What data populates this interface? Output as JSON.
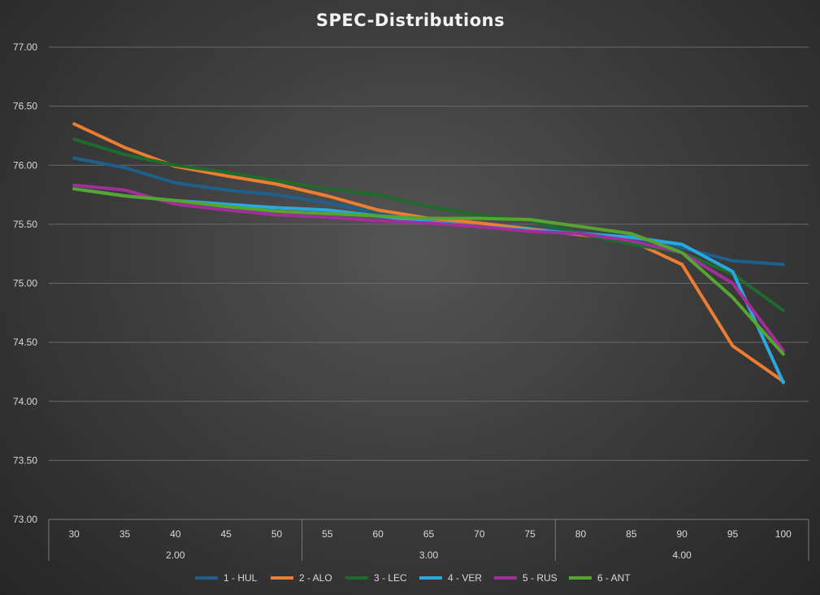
{
  "chart_data": {
    "type": "line",
    "title": "SPEC-Distributions",
    "xlabel": "",
    "ylabel": "",
    "ylim": [
      73.0,
      77.0
    ],
    "y_ticks": [
      "73.00",
      "73.50",
      "74.00",
      "74.50",
      "75.00",
      "75.50",
      "76.00",
      "76.50",
      "77.00"
    ],
    "categories": [
      "30",
      "35",
      "40",
      "45",
      "50",
      "55",
      "60",
      "65",
      "70",
      "75",
      "80",
      "85",
      "90",
      "95",
      "100"
    ],
    "groups": [
      {
        "label": "2.00",
        "count": 5
      },
      {
        "label": "3.00",
        "count": 5
      },
      {
        "label": "4.00",
        "count": 5
      }
    ],
    "grid": true,
    "legend_position": "bottom",
    "series": [
      {
        "name": "1 - HUL",
        "color": "#1f5f8b",
        "values": [
          76.06,
          75.98,
          75.85,
          75.79,
          75.75,
          75.68,
          75.6,
          75.54,
          75.51,
          75.47,
          75.43,
          75.39,
          75.3,
          75.19,
          75.16
        ]
      },
      {
        "name": "2 - ALO",
        "color": "#ed7d31",
        "values": [
          76.35,
          76.15,
          75.99,
          75.91,
          75.84,
          75.74,
          75.62,
          75.55,
          75.51,
          75.46,
          75.41,
          75.36,
          75.16,
          74.47,
          74.17
        ]
      },
      {
        "name": "3 - LEC",
        "color": "#1e6b2c",
        "values": [
          76.22,
          76.09,
          76.0,
          75.94,
          75.87,
          75.8,
          75.75,
          75.65,
          75.58,
          75.53,
          75.42,
          75.33,
          75.26,
          75.08,
          74.77
        ]
      },
      {
        "name": "4 - VER",
        "color": "#2aa8e0",
        "values": [
          75.8,
          75.74,
          75.7,
          75.67,
          75.64,
          75.62,
          75.57,
          75.52,
          75.48,
          75.45,
          75.42,
          75.39,
          75.33,
          75.1,
          74.16
        ]
      },
      {
        "name": "5 - RUS",
        "color": "#a12f9a",
        "values": [
          75.83,
          75.79,
          75.67,
          75.62,
          75.58,
          75.56,
          75.53,
          75.51,
          75.48,
          75.44,
          75.42,
          75.36,
          75.26,
          75.0,
          74.43
        ]
      },
      {
        "name": "6 - ANT",
        "color": "#55a630",
        "values": [
          75.8,
          75.74,
          75.7,
          75.65,
          75.61,
          75.59,
          75.57,
          75.55,
          75.55,
          75.54,
          75.48,
          75.42,
          75.26,
          74.88,
          74.4
        ]
      }
    ]
  }
}
